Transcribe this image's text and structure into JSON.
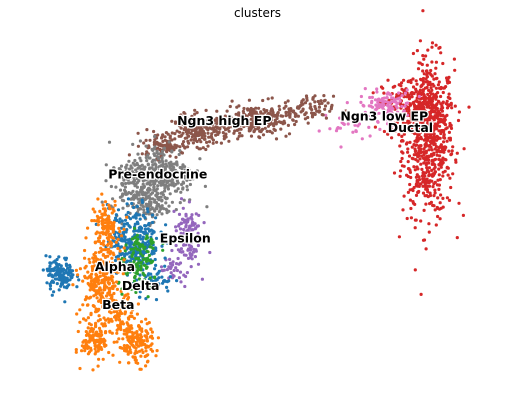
{
  "chart_data": {
    "type": "scatter",
    "title": "clusters",
    "xlabel": "",
    "ylabel": "",
    "xlim": [
      0,
      1
    ],
    "ylim": [
      0,
      1
    ],
    "grid": false,
    "axes_visible": false,
    "legend": "on data",
    "marker_size": "small",
    "clusters": [
      {
        "name": "Ductal",
        "color": "#d62728",
        "label_pos": [
          0.822,
          0.727
        ],
        "blobs": [
          [
            0.86,
            0.7,
            0.045,
            0.18,
            700
          ],
          [
            0.83,
            0.78,
            0.055,
            0.07,
            200
          ]
        ]
      },
      {
        "name": "Ngn3 low EP",
        "color": "#e377c2",
        "label_pos": [
          0.767,
          0.759
        ],
        "blobs": [
          [
            0.77,
            0.79,
            0.045,
            0.035,
            120
          ],
          [
            0.69,
            0.73,
            0.045,
            0.035,
            25
          ]
        ]
      },
      {
        "name": "Ngn3 high EP",
        "color": "#8c564b",
        "label_pos": [
          0.43,
          0.746
        ],
        "blobs": [
          [
            0.38,
            0.72,
            0.05,
            0.035,
            220
          ],
          [
            0.5,
            0.75,
            0.06,
            0.035,
            230
          ],
          [
            0.6,
            0.78,
            0.05,
            0.03,
            90
          ],
          [
            0.3,
            0.68,
            0.035,
            0.03,
            80
          ]
        ]
      },
      {
        "name": "Pre-endocrine",
        "color": "#7f7f7f",
        "label_pos": [
          0.29,
          0.597
        ],
        "blobs": [
          [
            0.3,
            0.6,
            0.055,
            0.07,
            280
          ],
          [
            0.24,
            0.57,
            0.04,
            0.06,
            140
          ],
          [
            0.27,
            0.51,
            0.035,
            0.035,
            90
          ]
        ]
      },
      {
        "name": "Epsilon",
        "color": "#9467bd",
        "label_pos": [
          0.348,
          0.42
        ],
        "blobs": [
          [
            0.35,
            0.43,
            0.025,
            0.08,
            120
          ],
          [
            0.32,
            0.33,
            0.02,
            0.03,
            30
          ]
        ]
      },
      {
        "name": "Alpha",
        "color": "#1f77b4",
        "label_pos": [
          0.2,
          0.34
        ],
        "blobs": [
          [
            0.24,
            0.42,
            0.045,
            0.075,
            280
          ],
          [
            0.085,
            0.32,
            0.025,
            0.04,
            130
          ],
          [
            0.28,
            0.3,
            0.035,
            0.03,
            60
          ]
        ]
      },
      {
        "name": "Delta",
        "color": "#2ca02c",
        "label_pos": [
          0.254,
          0.287
        ],
        "blobs": [
          [
            0.25,
            0.33,
            0.035,
            0.06,
            100
          ],
          [
            0.26,
            0.4,
            0.03,
            0.03,
            30
          ]
        ]
      },
      {
        "name": "Beta",
        "color": "#ff7f0e",
        "label_pos": [
          0.207,
          0.235
        ],
        "blobs": [
          [
            0.18,
            0.46,
            0.025,
            0.055,
            120
          ],
          [
            0.17,
            0.3,
            0.035,
            0.075,
            240
          ],
          [
            0.16,
            0.14,
            0.025,
            0.05,
            130
          ],
          [
            0.245,
            0.13,
            0.03,
            0.05,
            150
          ],
          [
            0.21,
            0.21,
            0.03,
            0.04,
            90
          ]
        ]
      }
    ]
  }
}
